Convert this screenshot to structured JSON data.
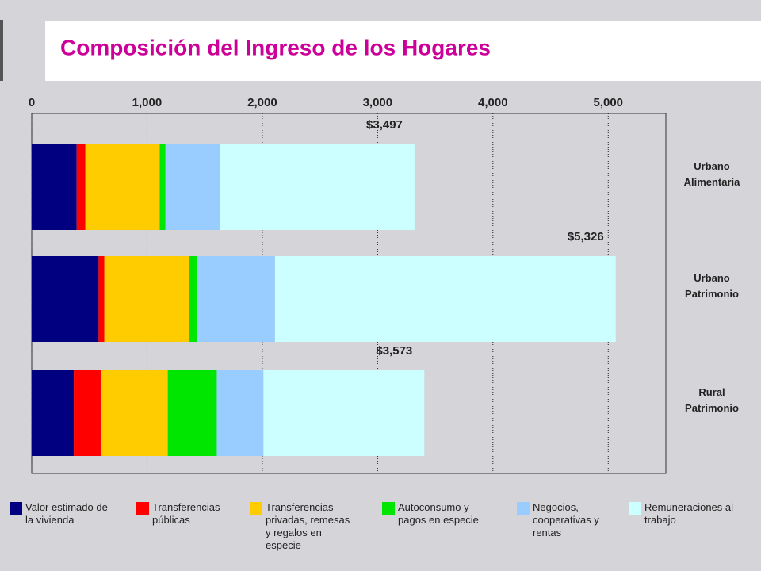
{
  "chart_data": {
    "type": "stacked_barh",
    "title": "Composición del Ingreso de los Hogares",
    "categories": [
      "Urbano Alimentaria",
      "Urbano Patrimonio",
      "Rural Patrimonio"
    ],
    "annotations": [
      "$3,497",
      "$5,326",
      "$3,573"
    ],
    "series": [
      {
        "name": "Valor estimado de la vivienda",
        "color": "#000080",
        "values": [
          390,
          580,
          365
        ]
      },
      {
        "name": "Transferencias públicas",
        "color": "#ff0000",
        "values": [
          75,
          50,
          235
        ]
      },
      {
        "name": "Transferencias privadas, remesas y regalos en especie",
        "color": "#ffcc00",
        "values": [
          645,
          735,
          580
        ]
      },
      {
        "name": "Autoconsumo y pagos en especie",
        "color": "#00e600",
        "values": [
          50,
          70,
          425
        ]
      },
      {
        "name": "Negocios, cooperativas y rentas",
        "color": "#99ccff",
        "values": [
          470,
          675,
          405
        ]
      },
      {
        "name": "Remuneraciones al trabajo",
        "color": "#ccffff",
        "values": [
          1690,
          2955,
          1395
        ]
      }
    ],
    "xlim": [
      0,
      5500
    ],
    "xticks": [
      0,
      {
        "value": 1000,
        "label": "1,000"
      },
      {
        "value": 2000,
        "label": "2,000"
      },
      {
        "value": 3000,
        "label": "3,000"
      },
      {
        "value": 4000,
        "label": "4,000"
      },
      {
        "value": 5000,
        "label": "5,000"
      }
    ],
    "grid": true
  }
}
